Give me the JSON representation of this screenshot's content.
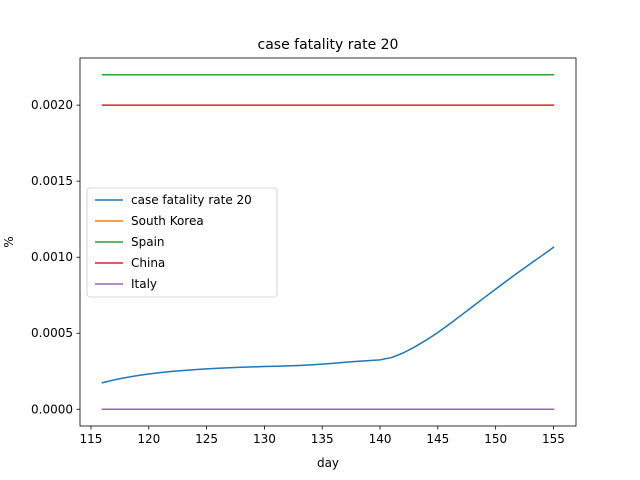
{
  "chart_data": {
    "type": "line",
    "title": "case fatality rate 20",
    "xlabel": "day",
    "ylabel": "%",
    "xlim": [
      114.05,
      156.95
    ],
    "ylim": [
      -0.00011,
      0.00231
    ],
    "xticks": [
      115,
      120,
      125,
      130,
      135,
      140,
      145,
      150,
      155
    ],
    "yticks": [
      0.0,
      0.0005,
      0.001,
      0.0015,
      0.002
    ],
    "ytick_labels": [
      "0.0000",
      "0.0005",
      "0.0010",
      "0.0015",
      "0.0020"
    ],
    "grid": false,
    "legend_position": "center-left",
    "series": [
      {
        "name": "case fatality rate 20",
        "color": "#1f77b4",
        "x": [
          116,
          117,
          118,
          119,
          120,
          121,
          122,
          123,
          124,
          125,
          126,
          127,
          128,
          129,
          130,
          131,
          132,
          133,
          134,
          135,
          136,
          137,
          138,
          139,
          140,
          141,
          142,
          143,
          144,
          145,
          146,
          147,
          148,
          149,
          150,
          151,
          152,
          153,
          154,
          155
        ],
        "y": [
          0.000175,
          0.000193,
          0.000208,
          0.000221,
          0.000232,
          0.000241,
          0.000249,
          0.000255,
          0.000261,
          0.000266,
          0.00027,
          0.000273,
          0.000276,
          0.000279,
          0.000281,
          0.000283,
          0.000285,
          0.000288,
          0.000292,
          0.000297,
          0.000303,
          0.000309,
          0.000315,
          0.00032,
          0.000325,
          0.00034,
          0.00037,
          0.00041,
          0.000455,
          0.000505,
          0.00056,
          0.000617,
          0.000675,
          0.000733,
          0.00079,
          0.000847,
          0.000903,
          0.000957,
          0.00101,
          0.001065
        ]
      },
      {
        "name": "South Korea",
        "color": "#ff7f0e",
        "x": [
          116,
          155
        ],
        "y": [
          0.0,
          0.0
        ]
      },
      {
        "name": "Spain",
        "color": "#2ca02c",
        "x": [
          116,
          155
        ],
        "y": [
          0.0022,
          0.0022
        ]
      },
      {
        "name": "China",
        "color": "#d62728",
        "x": [
          116,
          155
        ],
        "y": [
          0.002,
          0.002
        ]
      },
      {
        "name": "Italy",
        "color": "#9467bd",
        "x": [
          116,
          155
        ],
        "y": [
          0.0,
          0.0
        ]
      }
    ]
  }
}
